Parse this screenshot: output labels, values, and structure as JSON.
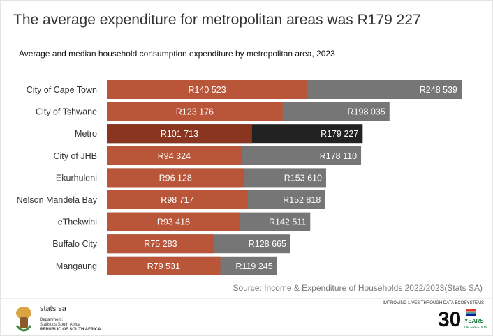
{
  "title": "The average expenditure for metropolitan areas was R179 227",
  "subtitle": "Average and median household consumption expenditure by metropolitan area, 2023",
  "source": "Source: Income & Expenditure of Households 2022/2023(Stats SA)",
  "colors": {
    "median": "#b9563a",
    "average": "#767676",
    "metro_median": "#8a3520",
    "metro_average": "#222222"
  },
  "chart_data": {
    "type": "bar",
    "orientation": "horizontal",
    "categories": [
      "City of Cape Town",
      "City of Tshwane",
      "Metro",
      "City of JHB",
      "Ekurhuleni",
      "Nelson Mandela Bay",
      "eThekwini",
      "Buffalo City",
      "Mangaung"
    ],
    "series": [
      {
        "key": "median",
        "values": [
          140523,
          123176,
          101713,
          94324,
          96128,
          98717,
          93418,
          75283,
          79531
        ],
        "labels": [
          "R140 523",
          "R123 176",
          "R101 713",
          "R94 324",
          "R96 128",
          "R98 717",
          "R93 418",
          "R75 283",
          "R79 531"
        ]
      },
      {
        "key": "average",
        "values": [
          248539,
          198035,
          179227,
          178110,
          153610,
          152818,
          142511,
          128665,
          119245
        ],
        "labels": [
          "R248 539",
          "R198 035",
          "R179 227",
          "R178 110",
          "R153 610",
          "R152 818",
          "R142 511",
          "R128 665",
          "R119 245"
        ]
      }
    ],
    "highlight": "Metro",
    "xlim": [
      0,
      248539
    ]
  },
  "footer": {
    "org_name": "stats sa",
    "dept_line1": "Department:",
    "dept_line2": "Statistics South Africa",
    "dept_line3": "REPUBLIC OF SOUTH AFRICA",
    "tagline": "IMPROVING LIVES THROUGH DATA ECOSYSTEMS",
    "badge_number": "30",
    "badge_text": "YEARS",
    "badge_sub": "OF FREEDOM"
  }
}
